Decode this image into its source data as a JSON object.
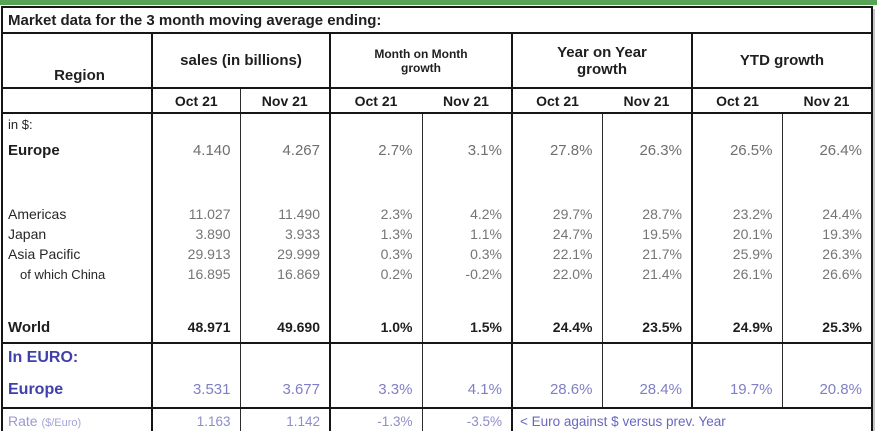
{
  "chrome": {
    "top_bar_color": "#57a457"
  },
  "table": {
    "title": "Market data for the 3 month moving average ending:",
    "region_header": "Region",
    "groups": [
      {
        "lines": [
          "sales (in billions)"
        ],
        "sub": [
          "Oct 21",
          "Nov 21"
        ]
      },
      {
        "lines": [
          "Month on Month",
          "growth"
        ],
        "sub": [
          "Oct 21",
          "Nov 21"
        ]
      },
      {
        "lines": [
          "Year on Year",
          "growth"
        ],
        "sub": [
          "Oct 21",
          "Nov 21"
        ]
      },
      {
        "lines": [
          "YTD growth"
        ],
        "sub": [
          "Oct 21",
          "Nov 21"
        ]
      }
    ],
    "main_rows": [
      {
        "label": "in $:",
        "kind": "caption",
        "values": [
          "",
          "",
          "",
          "",
          "",
          "",
          "",
          ""
        ]
      },
      {
        "label": "Europe",
        "kind": "bold-lg",
        "values": [
          "4.140",
          "4.267",
          "2.7%",
          "3.1%",
          "27.8%",
          "26.3%",
          "26.5%",
          "26.4%"
        ]
      },
      {
        "label": "",
        "kind": "spacer-lg",
        "values": [
          "",
          "",
          "",
          "",
          "",
          "",
          "",
          ""
        ]
      },
      {
        "label": "Americas",
        "kind": "normal",
        "values": [
          "11.027",
          "11.490",
          "2.3%",
          "4.2%",
          "29.7%",
          "28.7%",
          "23.2%",
          "24.4%"
        ]
      },
      {
        "label": "Japan",
        "kind": "normal",
        "values": [
          "3.890",
          "3.933",
          "1.3%",
          "1.1%",
          "24.7%",
          "19.5%",
          "20.1%",
          "19.3%"
        ]
      },
      {
        "label": "Asia Pacific",
        "kind": "normal",
        "values": [
          "29.913",
          "29.999",
          "0.3%",
          "0.3%",
          "22.1%",
          "21.7%",
          "25.9%",
          "26.3%"
        ]
      },
      {
        "label": "of which China",
        "kind": "indent",
        "values": [
          "16.895",
          "16.869",
          "0.2%",
          "-0.2%",
          "22.0%",
          "21.4%",
          "26.1%",
          "26.6%"
        ]
      },
      {
        "label": "",
        "kind": "spacer-sm",
        "values": [
          "",
          "",
          "",
          "",
          "",
          "",
          "",
          ""
        ]
      },
      {
        "label": "World",
        "kind": "bold",
        "values": [
          "48.971",
          "49.690",
          "1.0%",
          "1.5%",
          "24.4%",
          "23.5%",
          "24.9%",
          "25.3%"
        ]
      }
    ],
    "euro_rows": [
      {
        "label": "In EURO:",
        "kind": "euro-caption",
        "values": [
          "",
          "",
          "",
          "",
          "",
          "",
          "",
          ""
        ]
      },
      {
        "label": "Europe",
        "kind": "euro-bold",
        "values": [
          "3.531",
          "3.677",
          "3.3%",
          "4.1%",
          "28.6%",
          "28.4%",
          "19.7%",
          "20.8%"
        ]
      }
    ],
    "rate_row": {
      "label": "Rate",
      "label_suffix": "($/Euro)",
      "values": [
        "1.163",
        "1.142",
        "-1.3%",
        "-3.5%"
      ],
      "note": "< Euro against $ versus prev. Year"
    }
  },
  "chart_data": {
    "type": "table",
    "title": "Market data for the 3 month moving average ending:",
    "column_groups": [
      "sales (in billions)",
      "Month on Month growth",
      "Year on Year growth",
      "YTD growth"
    ],
    "columns": [
      "Region",
      "sales Oct 21",
      "sales Nov 21",
      "MoM growth Oct 21",
      "MoM growth Nov 21",
      "YoY growth Oct 21",
      "YoY growth Nov 21",
      "YTD growth Oct 21",
      "YTD growth Nov 21"
    ],
    "rows": [
      {
        "section": "in $:",
        "region": "Europe",
        "values": [
          4.14,
          4.267,
          "2.7%",
          "3.1%",
          "27.8%",
          "26.3%",
          "26.5%",
          "26.4%"
        ]
      },
      {
        "section": "in $:",
        "region": "Americas",
        "values": [
          11.027,
          11.49,
          "2.3%",
          "4.2%",
          "29.7%",
          "28.7%",
          "23.2%",
          "24.4%"
        ]
      },
      {
        "section": "in $:",
        "region": "Japan",
        "values": [
          3.89,
          3.933,
          "1.3%",
          "1.1%",
          "24.7%",
          "19.5%",
          "20.1%",
          "19.3%"
        ]
      },
      {
        "section": "in $:",
        "region": "Asia Pacific",
        "values": [
          29.913,
          29.999,
          "0.3%",
          "0.3%",
          "22.1%",
          "21.7%",
          "25.9%",
          "26.3%"
        ]
      },
      {
        "section": "in $:",
        "region": "of which China",
        "values": [
          16.895,
          16.869,
          "0.2%",
          "-0.2%",
          "22.0%",
          "21.4%",
          "26.1%",
          "26.6%"
        ]
      },
      {
        "section": "in $:",
        "region": "World",
        "values": [
          48.971,
          49.69,
          "1.0%",
          "1.5%",
          "24.4%",
          "23.5%",
          "24.9%",
          "25.3%"
        ]
      },
      {
        "section": "In EURO:",
        "region": "Europe",
        "values": [
          3.531,
          3.677,
          "3.3%",
          "4.1%",
          "28.6%",
          "28.4%",
          "19.7%",
          "20.8%"
        ]
      },
      {
        "section": "In EURO:",
        "region": "Rate ($/Euro)",
        "values": [
          1.163,
          1.142,
          "-1.3%",
          "-3.5%",
          "< Euro against $ versus prev. Year",
          "",
          "",
          ""
        ]
      }
    ]
  }
}
